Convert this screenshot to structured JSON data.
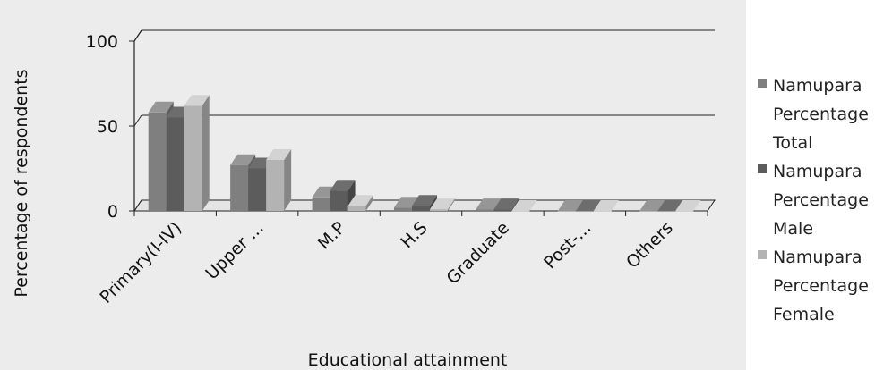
{
  "chart_data": {
    "type": "bar",
    "style": "3d-clustered-column",
    "title": "",
    "xlabel": "Educational attainment",
    "ylabel": "Percentage of respondents",
    "ylim": [
      0,
      100
    ],
    "yticks": [
      0,
      50,
      100
    ],
    "grid": true,
    "legend_position": "right",
    "categories": [
      "Primary(I-IV)",
      "Upper ...",
      "M.P",
      "H.S",
      "Graduate",
      "Post-...",
      "Others"
    ],
    "series": [
      {
        "name": "Namupara Percentage Total",
        "color": "#7f7f7f",
        "values": [
          58,
          27,
          8,
          2,
          1,
          0,
          0
        ]
      },
      {
        "name": "Namupara Percentage Male",
        "color": "#5c5c5c",
        "values": [
          55,
          25,
          12,
          3,
          1,
          0,
          0
        ]
      },
      {
        "name": "Namupara Percentage Female",
        "color": "#b3b3b3",
        "values": [
          62,
          30,
          3,
          1,
          0,
          0,
          0
        ]
      }
    ]
  }
}
